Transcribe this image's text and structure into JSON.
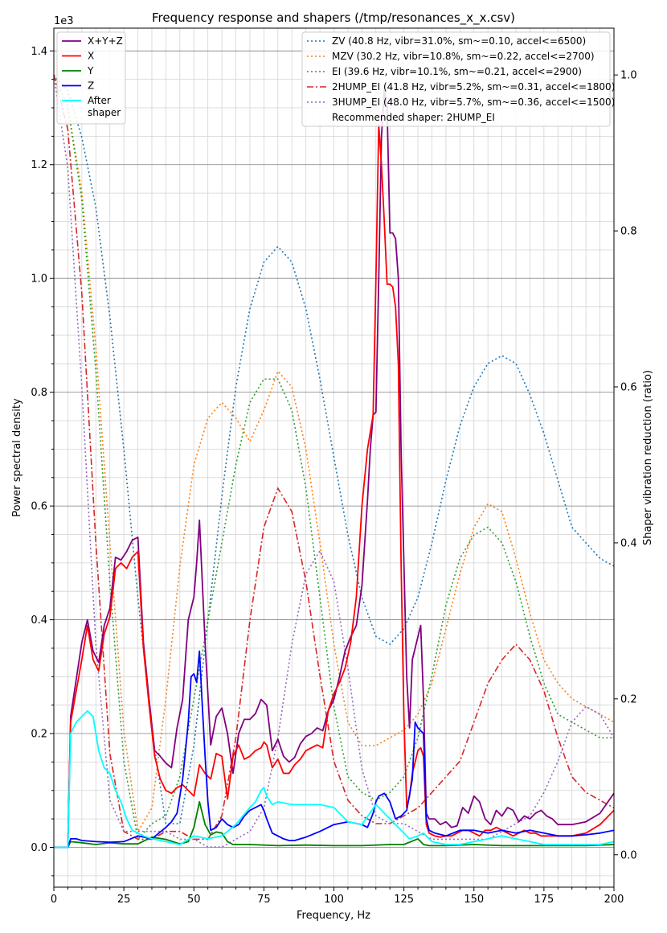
{
  "chart_data": {
    "type": "line",
    "title": "Frequency response and shapers (/tmp/resonances_x_x.csv)",
    "xlabel": "Frequency, Hz",
    "ylabel": "Power spectral density",
    "y2label": "Shaper vibration reduction (ratio)",
    "y_offset_label": "1e3",
    "xlim": [
      0,
      200
    ],
    "ylim": [
      -70,
      1440
    ],
    "y2lim": [
      -0.0415,
      1.06
    ],
    "x_ticks": [
      0,
      25,
      50,
      75,
      100,
      125,
      150,
      175,
      200
    ],
    "x_tick_labels": [
      "0",
      "25",
      "50",
      "75",
      "100",
      "125",
      "150",
      "175",
      "200"
    ],
    "y_ticks": [
      0,
      200,
      400,
      600,
      800,
      1000,
      1200,
      1400
    ],
    "y_tick_labels": [
      "0.0",
      "0.2",
      "0.4",
      "0.6",
      "0.8",
      "1.0",
      "1.2",
      "1.4"
    ],
    "y2_ticks": [
      0,
      0.2,
      0.4,
      0.6,
      0.8,
      1.0
    ],
    "y2_tick_labels": [
      "0.0",
      "0.2",
      "0.4",
      "0.6",
      "0.8",
      "1.0"
    ],
    "grid": true,
    "legend_left_placement": "upper-left",
    "legend_right_placement": "upper-right",
    "psd_series": [
      {
        "name": "X+Y+Z",
        "color": "#800080",
        "x": [
          0,
          5,
          6,
          10,
          12,
          14,
          16,
          18,
          20,
          22,
          24,
          26,
          28,
          30,
          32,
          34,
          36,
          38,
          40,
          42,
          44,
          46,
          48,
          49,
          50,
          51,
          52,
          54,
          56,
          58,
          60,
          62,
          64,
          66,
          68,
          70,
          72,
          74,
          75,
          76,
          78,
          80,
          82,
          84,
          86,
          88,
          90,
          92,
          94,
          96,
          98,
          100,
          102,
          104,
          106,
          108,
          110,
          112,
          113,
          114,
          115,
          116,
          117,
          118,
          119,
          120,
          121,
          122,
          123,
          124,
          125,
          126,
          127,
          128,
          129,
          130,
          131,
          132,
          133,
          134,
          136,
          138,
          140,
          142,
          144,
          146,
          148,
          150,
          152,
          154,
          156,
          158,
          160,
          162,
          164,
          166,
          168,
          170,
          172,
          174,
          176,
          178,
          180,
          185,
          190,
          195,
          200
        ],
        "y": [
          0,
          0,
          230,
          360,
          400,
          345,
          325,
          390,
          420,
          510,
          505,
          520,
          540,
          545,
          360,
          260,
          170,
          160,
          148,
          140,
          210,
          260,
          400,
          420,
          440,
          500,
          575,
          360,
          180,
          230,
          245,
          200,
          130,
          200,
          225,
          225,
          235,
          260,
          255,
          250,
          170,
          190,
          160,
          150,
          158,
          182,
          195,
          200,
          210,
          205,
          240,
          260,
          300,
          345,
          370,
          390,
          460,
          610,
          700,
          760,
          765,
          1000,
          1250,
          1330,
          1300,
          1080,
          1080,
          1070,
          1000,
          700,
          500,
          300,
          210,
          330,
          350,
          370,
          390,
          260,
          60,
          50,
          50,
          40,
          45,
          35,
          38,
          70,
          60,
          90,
          80,
          50,
          40,
          65,
          55,
          70,
          65,
          45,
          55,
          50,
          60,
          65,
          55,
          50,
          40,
          40,
          45,
          60,
          95
        ]
      },
      {
        "name": "X",
        "color": "#ff0000",
        "x": [
          0,
          5,
          6,
          10,
          12,
          14,
          16,
          18,
          20,
          22,
          24,
          26,
          28,
          30,
          32,
          34,
          36,
          38,
          40,
          42,
          44,
          46,
          48,
          50,
          52,
          54,
          56,
          58,
          60,
          62,
          64,
          66,
          68,
          70,
          72,
          74,
          75,
          76,
          78,
          80,
          82,
          84,
          86,
          88,
          90,
          92,
          94,
          96,
          98,
          100,
          102,
          104,
          106,
          108,
          110,
          112,
          113,
          114,
          115,
          116,
          117,
          118,
          119,
          120,
          121,
          122,
          123,
          124,
          125,
          126,
          127,
          128,
          129,
          130,
          131,
          132,
          133,
          134,
          136,
          138,
          140,
          142,
          144,
          146,
          148,
          150,
          152,
          154,
          156,
          158,
          160,
          162,
          164,
          166,
          168,
          170,
          172,
          174,
          176,
          178,
          180,
          185,
          190,
          195,
          200
        ],
        "y": [
          0,
          0,
          220,
          330,
          390,
          330,
          310,
          375,
          405,
          490,
          500,
          490,
          510,
          520,
          350,
          250,
          160,
          120,
          100,
          95,
          105,
          110,
          100,
          90,
          145,
          130,
          120,
          165,
          160,
          85,
          160,
          180,
          155,
          160,
          170,
          175,
          185,
          180,
          140,
          155,
          130,
          130,
          145,
          155,
          170,
          175,
          180,
          175,
          240,
          270,
          290,
          315,
          360,
          440,
          600,
          700,
          730,
          760,
          1000,
          1270,
          1200,
          1100,
          990,
          990,
          985,
          950,
          850,
          500,
          230,
          70,
          90,
          130,
          150,
          170,
          175,
          160,
          40,
          25,
          20,
          18,
          20,
          20,
          25,
          30,
          30,
          25,
          20,
          30,
          30,
          35,
          30,
          25,
          20,
          25,
          30,
          25,
          25,
          20,
          20,
          20,
          20,
          20,
          25,
          40,
          65
        ]
      },
      {
        "name": "Y",
        "color": "#008000",
        "x": [
          0,
          5,
          6,
          10,
          15,
          20,
          25,
          30,
          35,
          40,
          45,
          48,
          50,
          52,
          54,
          56,
          58,
          60,
          62,
          64,
          66,
          70,
          80,
          90,
          100,
          110,
          120,
          125,
          130,
          132,
          134,
          140,
          150,
          160,
          170,
          180,
          190,
          200
        ],
        "y": [
          0,
          0,
          10,
          8,
          5,
          8,
          6,
          6,
          18,
          14,
          6,
          10,
          35,
          80,
          40,
          22,
          27,
          25,
          10,
          5,
          5,
          5,
          3,
          4,
          3,
          3,
          5,
          5,
          15,
          5,
          3,
          3,
          5,
          3,
          3,
          3,
          3,
          5
        ]
      },
      {
        "name": "Z",
        "color": "#0000ff",
        "x": [
          0,
          5,
          6,
          8,
          10,
          15,
          20,
          25,
          30,
          35,
          40,
          42,
          44,
          46,
          48,
          49,
          50,
          51,
          52,
          53,
          54,
          55,
          56,
          58,
          60,
          62,
          64,
          66,
          68,
          70,
          72,
          74,
          75,
          76,
          78,
          80,
          82,
          84,
          86,
          88,
          90,
          95,
          100,
          105,
          110,
          112,
          114,
          115,
          116,
          118,
          120,
          122,
          124,
          126,
          128,
          129,
          130,
          132,
          133,
          134,
          136,
          140,
          145,
          150,
          155,
          160,
          165,
          170,
          175,
          180,
          185,
          190,
          195,
          200
        ],
        "y": [
          0,
          0,
          15,
          15,
          12,
          10,
          9,
          10,
          20,
          15,
          35,
          45,
          60,
          120,
          220,
          300,
          305,
          290,
          345,
          250,
          160,
          80,
          30,
          35,
          50,
          40,
          35,
          40,
          55,
          65,
          70,
          75,
          65,
          50,
          25,
          20,
          15,
          12,
          12,
          15,
          18,
          28,
          40,
          45,
          40,
          35,
          60,
          80,
          90,
          95,
          80,
          50,
          55,
          65,
          120,
          220,
          210,
          200,
          50,
          30,
          25,
          20,
          30,
          30,
          25,
          30,
          25,
          30,
          25,
          20,
          20,
          22,
          25,
          30
        ]
      },
      {
        "name": "After\nshaper",
        "color": "#00ffff",
        "x": [
          0,
          5,
          6,
          8,
          10,
          12,
          14,
          16,
          18,
          20,
          22,
          24,
          26,
          28,
          30,
          32,
          35,
          40,
          45,
          50,
          55,
          60,
          65,
          70,
          72,
          74,
          75,
          76,
          78,
          80,
          85,
          90,
          95,
          100,
          105,
          110,
          115,
          120,
          125,
          127,
          130,
          132,
          135,
          140,
          145,
          150,
          155,
          160,
          165,
          170,
          175,
          180,
          185,
          190,
          195,
          200
        ],
        "y": [
          0,
          0,
          200,
          220,
          230,
          240,
          230,
          170,
          140,
          130,
          100,
          80,
          50,
          30,
          25,
          20,
          15,
          10,
          5,
          20,
          15,
          20,
          40,
          70,
          80,
          100,
          105,
          90,
          75,
          80,
          75,
          75,
          75,
          70,
          45,
          40,
          75,
          50,
          25,
          15,
          20,
          25,
          10,
          5,
          5,
          10,
          15,
          20,
          15,
          10,
          5,
          5,
          5,
          5,
          5,
          10
        ]
      }
    ],
    "shaper_series": [
      {
        "name": "ZV (40.8 Hz, vibr=31.0%, sm~=0.10, accel<=6500)",
        "color": "#1f77b4",
        "dash": "2,3",
        "x": [
          0,
          5,
          10,
          15,
          20,
          25,
          30,
          35,
          40,
          45,
          50,
          55,
          60,
          65,
          70,
          75,
          80,
          85,
          90,
          95,
          100,
          105,
          110,
          115,
          120,
          125,
          130,
          135,
          140,
          145,
          150,
          155,
          160,
          165,
          170,
          175,
          180,
          185,
          190,
          195,
          200
        ],
        "y": [
          1.0,
          0.98,
          0.92,
          0.83,
          0.69,
          0.52,
          0.33,
          0.16,
          0.04,
          0.04,
          0.14,
          0.3,
          0.46,
          0.6,
          0.7,
          0.76,
          0.78,
          0.76,
          0.7,
          0.61,
          0.51,
          0.41,
          0.33,
          0.28,
          0.27,
          0.29,
          0.33,
          0.4,
          0.48,
          0.55,
          0.6,
          0.63,
          0.64,
          0.63,
          0.59,
          0.54,
          0.48,
          0.42,
          0.4,
          0.38,
          0.37
        ]
      },
      {
        "name": "MZV (30.2 Hz, vibr=10.8%, sm~=0.22, accel<=2700)",
        "color": "#ff7f0e",
        "dash": "2,3",
        "x": [
          0,
          5,
          10,
          15,
          20,
          25,
          30,
          35,
          40,
          45,
          50,
          55,
          60,
          65,
          70,
          75,
          80,
          85,
          90,
          95,
          100,
          105,
          110,
          115,
          120,
          125,
          130,
          135,
          140,
          145,
          150,
          155,
          160,
          165,
          170,
          175,
          180,
          185,
          190,
          195,
          200
        ],
        "y": [
          1.0,
          0.96,
          0.85,
          0.65,
          0.4,
          0.16,
          0.03,
          0.06,
          0.2,
          0.37,
          0.5,
          0.56,
          0.58,
          0.56,
          0.53,
          0.57,
          0.62,
          0.6,
          0.52,
          0.4,
          0.27,
          0.17,
          0.14,
          0.14,
          0.15,
          0.16,
          0.18,
          0.22,
          0.29,
          0.36,
          0.42,
          0.45,
          0.44,
          0.38,
          0.31,
          0.25,
          0.22,
          0.2,
          0.19,
          0.18,
          0.17
        ]
      },
      {
        "name": "EI (39.6 Hz, vibr=10.1%, sm~=0.21, accel<=2900)",
        "color": "#2ca02c",
        "dash": "2,3",
        "x": [
          0,
          5,
          10,
          15,
          20,
          25,
          30,
          35,
          40,
          45,
          50,
          55,
          60,
          65,
          70,
          75,
          80,
          85,
          90,
          95,
          100,
          105,
          110,
          115,
          120,
          125,
          130,
          135,
          140,
          145,
          150,
          155,
          160,
          165,
          170,
          175,
          180,
          185,
          190,
          195,
          200
        ],
        "y": [
          1.0,
          0.96,
          0.84,
          0.62,
          0.35,
          0.12,
          0.02,
          0.04,
          0.05,
          0.1,
          0.2,
          0.3,
          0.4,
          0.5,
          0.58,
          0.61,
          0.61,
          0.57,
          0.47,
          0.33,
          0.19,
          0.1,
          0.08,
          0.07,
          0.08,
          0.1,
          0.15,
          0.23,
          0.32,
          0.38,
          0.41,
          0.42,
          0.4,
          0.35,
          0.28,
          0.22,
          0.18,
          0.17,
          0.16,
          0.15,
          0.15
        ]
      },
      {
        "name": "2HUMP_EI (41.8 Hz, vibr=5.2%, sm~=0.31, accel<=1800)",
        "color": "#d62728",
        "dash": "8,3,2,3",
        "x": [
          0,
          5,
          10,
          15,
          20,
          25,
          30,
          35,
          40,
          45,
          50,
          55,
          60,
          65,
          70,
          75,
          80,
          85,
          90,
          95,
          100,
          105,
          110,
          115,
          120,
          125,
          130,
          135,
          140,
          145,
          150,
          155,
          160,
          165,
          170,
          175,
          180,
          185,
          190,
          195,
          200
        ],
        "y": [
          1.0,
          0.93,
          0.72,
          0.4,
          0.13,
          0.03,
          0.02,
          0.02,
          0.03,
          0.03,
          0.02,
          0.02,
          0.05,
          0.15,
          0.3,
          0.42,
          0.47,
          0.44,
          0.35,
          0.23,
          0.12,
          0.07,
          0.05,
          0.04,
          0.04,
          0.05,
          0.06,
          0.08,
          0.1,
          0.12,
          0.17,
          0.22,
          0.25,
          0.27,
          0.25,
          0.21,
          0.15,
          0.1,
          0.08,
          0.07,
          0.06
        ]
      },
      {
        "name": "3HUMP_EI (48.0 Hz, vibr=5.7%, sm~=0.36, accel<=1500)",
        "color": "#9467bd",
        "dash": "2,3",
        "x": [
          0,
          5,
          10,
          15,
          20,
          25,
          30,
          35,
          40,
          45,
          50,
          55,
          60,
          65,
          70,
          75,
          80,
          85,
          90,
          95,
          100,
          105,
          110,
          115,
          120,
          125,
          130,
          135,
          140,
          145,
          150,
          155,
          160,
          165,
          170,
          175,
          180,
          185,
          190,
          195,
          200
        ],
        "y": [
          1.0,
          0.88,
          0.6,
          0.27,
          0.07,
          0.03,
          0.03,
          0.03,
          0.03,
          0.02,
          0.02,
          0.01,
          0.01,
          0.02,
          0.03,
          0.06,
          0.15,
          0.27,
          0.36,
          0.39,
          0.35,
          0.24,
          0.11,
          0.05,
          0.04,
          0.04,
          0.03,
          0.02,
          0.02,
          0.02,
          0.02,
          0.02,
          0.03,
          0.04,
          0.05,
          0.08,
          0.12,
          0.17,
          0.19,
          0.18,
          0.15
        ]
      }
    ],
    "recommended_text": "Recommended shaper: 2HUMP_EI"
  }
}
